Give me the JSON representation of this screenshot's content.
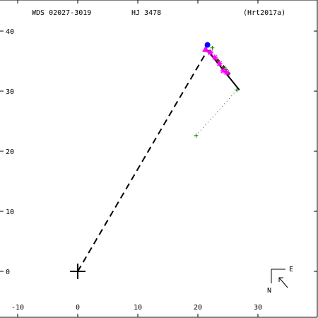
{
  "header": {
    "wds": "WDS 02027-3019",
    "name": "HJ 3478",
    "ref": "(Hrt2017a)"
  },
  "compass": {
    "east": "E",
    "north": "N"
  },
  "chart_data": {
    "type": "scatter",
    "title": "",
    "xlabel": "",
    "ylabel": "",
    "xlim": [
      -12.5,
      40
    ],
    "ylim": [
      -7.5,
      45
    ],
    "x_ticks": [
      -10,
      0,
      10,
      20,
      30
    ],
    "y_ticks": [
      0,
      10,
      20,
      30,
      40
    ],
    "x_tick_labels": [
      "-10",
      "0",
      "10",
      "20",
      "30"
    ],
    "y_tick_labels": [
      "0",
      "10",
      "20",
      "30",
      "40"
    ],
    "grid": false,
    "colors": {
      "orbit": "#000000",
      "green": "#008000",
      "magenta": "#ff00ff",
      "blue": "#0000ff",
      "ink": "#000000"
    },
    "primary": {
      "x": 0,
      "y": 0
    },
    "orbit_segment": [
      [
        21.6,
        36.8
      ],
      [
        26.9,
        30.2
      ]
    ],
    "node_line": [
      [
        0,
        0
      ],
      [
        21.6,
        36.8
      ]
    ],
    "residual_segment": [
      [
        19.7,
        22.6
      ],
      [
        26.5,
        30.2
      ]
    ],
    "green_points": [
      [
        19.7,
        22.6
      ],
      [
        26.5,
        30.2
      ],
      [
        22.4,
        37.2
      ],
      [
        21.8,
        36.5
      ],
      [
        23.0,
        35.4
      ],
      [
        24.7,
        33.6
      ]
    ],
    "dark_points": [
      [
        22.0,
        36.6
      ],
      [
        23.3,
        35.1
      ],
      [
        24.3,
        34.0
      ],
      [
        25.1,
        32.9
      ]
    ],
    "magenta_points": [
      [
        22.1,
        36.4
      ],
      [
        22.8,
        35.6
      ],
      [
        23.6,
        34.6
      ],
      [
        24.2,
        33.4
      ],
      [
        24.8,
        33.1
      ]
    ],
    "magenta_triangle": [
      21.3,
      37.0
    ],
    "blue_point": [
      21.6,
      37.7
    ]
  }
}
